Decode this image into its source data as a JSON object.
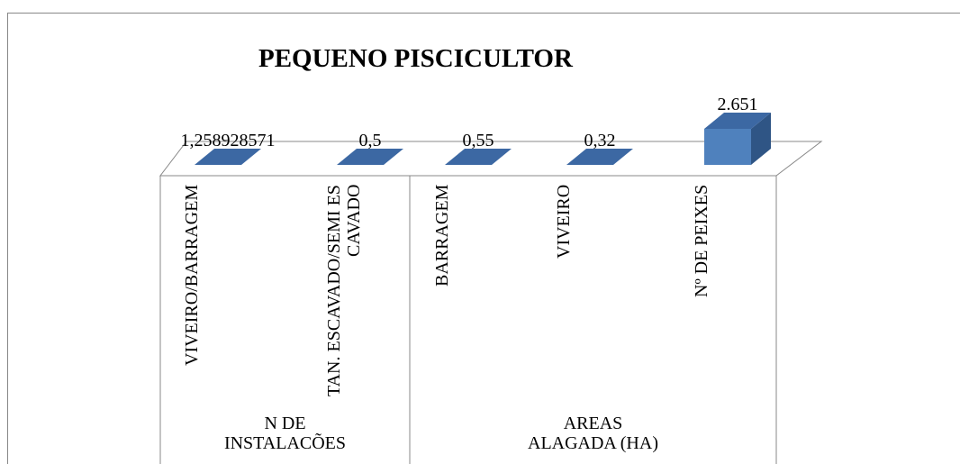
{
  "chart_data": {
    "type": "bar",
    "title": "PEQUENO PISCICULTOR",
    "groups": [
      {
        "name": "N DE INSTALACÕES",
        "categories": [
          "VIVEIRO/BARRAGEM",
          "TAN. ESCAVADO/SEMI ESCAVADO"
        ],
        "values": [
          1.258928571,
          0.5
        ],
        "value_labels": [
          "1,258928571",
          "0,5"
        ]
      },
      {
        "name": "AREAS ALAGADA (HA)",
        "categories": [
          "BARRAGEM",
          "VIVEIRO",
          "Nº DE PEIXES"
        ],
        "values": [
          0.55,
          0.32,
          2651
        ],
        "value_labels": [
          "0,55",
          "0,32",
          "2.651"
        ]
      }
    ],
    "color": "#4f81bd"
  }
}
